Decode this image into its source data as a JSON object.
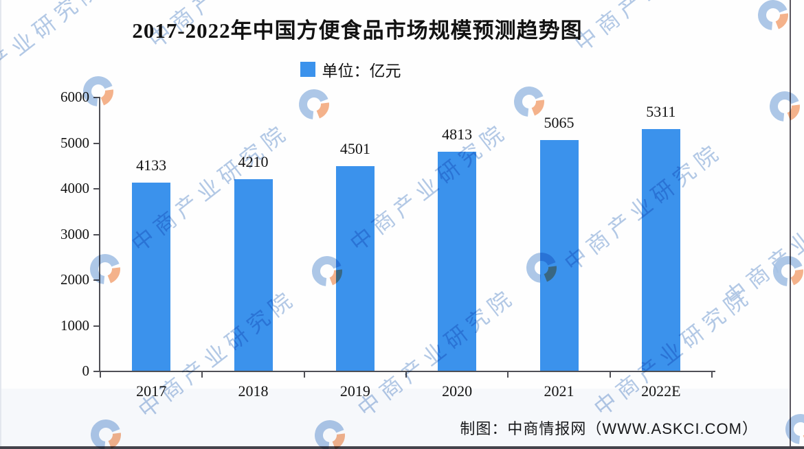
{
  "title": "2017-2022年中国方便食品市场规模预测趋势图",
  "legend": {
    "label": "单位：亿元"
  },
  "footer": {
    "credit": "制图：中商情报网（WWW.ASKCI.COM）"
  },
  "watermark": {
    "text": "中商产业研究院"
  },
  "colors": {
    "bar": "#3B92EC",
    "axis": "#4F4F55",
    "text": "#121212",
    "watermark_text": "#B3C9E6",
    "logo_blue": "#A6C3E6",
    "logo_orange": "#F4AB80"
  },
  "chart_data": {
    "type": "bar",
    "title": "2017-2022年中国方便食品市场规模预测趋势图",
    "unit_label": "单位：亿元",
    "categories": [
      "2017",
      "2018",
      "2019",
      "2020",
      "2021",
      "2022E"
    ],
    "values": [
      4133,
      4210,
      4501,
      4813,
      5065,
      5311
    ],
    "xlabel": "",
    "ylabel": "",
    "ylim": [
      0,
      6000
    ],
    "yticks": [
      0,
      1000,
      2000,
      3000,
      4000,
      5000,
      6000
    ],
    "grid": false,
    "legend_position": "top-center",
    "value_labels_shown": true,
    "source": "制图：中商情报网（WWW.ASKCI.COM）"
  }
}
